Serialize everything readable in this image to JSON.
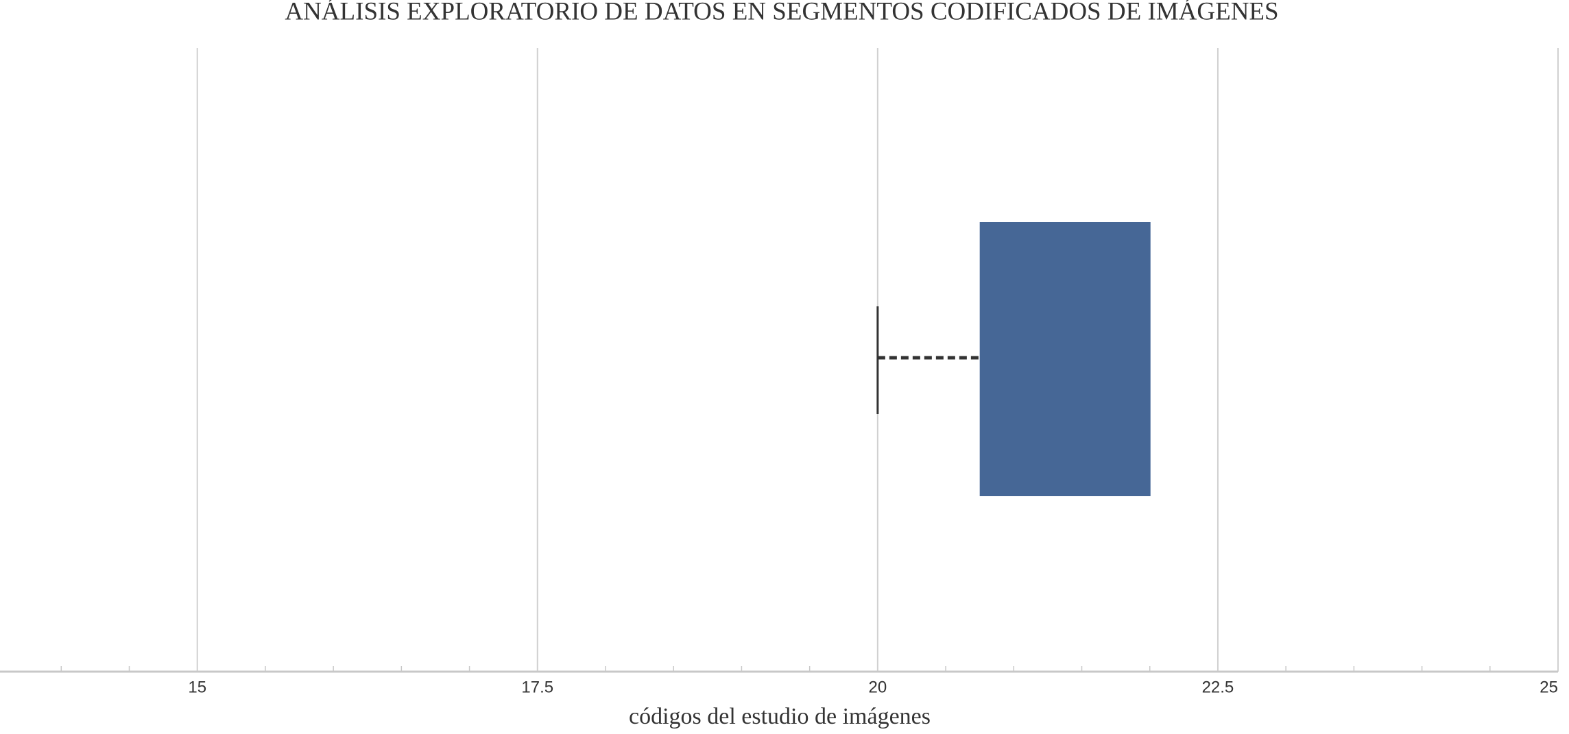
{
  "chart_data": {
    "type": "box",
    "title": "ANÁLISIS EXPLORATORIO DE DATOS EN SEGMENTOS CODIFICADOS DE IMÁGENES",
    "xlabel": "códigos del estudio de imágenes",
    "box": {
      "min": 20,
      "q1": 20.75,
      "median": 22,
      "q3": 22,
      "max": 22,
      "color": "#466796"
    },
    "xlim": [
      13.55,
      25
    ],
    "xticks": [
      15,
      17.5,
      20,
      22.5,
      25
    ],
    "xminorticks": [
      14,
      14.5,
      15.5,
      16,
      16.5,
      17,
      18,
      18.5,
      19,
      19.5,
      20.5,
      21,
      21.5,
      22,
      23,
      23.5,
      24,
      24.5
    ],
    "grid": true
  }
}
